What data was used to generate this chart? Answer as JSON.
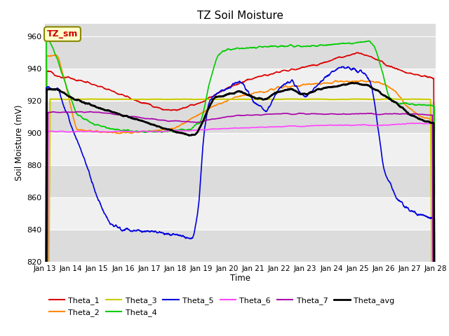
{
  "title": "TZ Soil Moisture",
  "ylabel": "Soil Moisture (mV)",
  "xlabel": "Time",
  "ylim": [
    820,
    968
  ],
  "yticks": [
    820,
    840,
    860,
    880,
    900,
    920,
    940,
    960
  ],
  "xtick_labels": [
    "Jan 13",
    "Jan 14",
    "Jan 15",
    "Jan 16",
    "Jan 17",
    "Jan 18",
    "Jan 19",
    "Jan 20",
    "Jan 21",
    "Jan 22",
    "Jan 23",
    "Jan 24",
    "Jan 25",
    "Jan 26",
    "Jan 27",
    "Jan 28"
  ],
  "bg_light": "#f0f0f0",
  "bg_dark": "#dcdcdc",
  "series": {
    "Theta_1": {
      "color": "#dd0000",
      "lw": 1.2
    },
    "Theta_2": {
      "color": "#ff8800",
      "lw": 1.2
    },
    "Theta_3": {
      "color": "#cccc00",
      "lw": 1.5
    },
    "Theta_4": {
      "color": "#00cc00",
      "lw": 1.2
    },
    "Theta_5": {
      "color": "#0000dd",
      "lw": 1.2
    },
    "Theta_6": {
      "color": "#ff44ff",
      "lw": 1.2
    },
    "Theta_7": {
      "color": "#aa00aa",
      "lw": 1.2
    },
    "Theta_avg": {
      "color": "#000000",
      "lw": 2.0
    }
  },
  "annotation_box": {
    "text": "TZ_sm",
    "fontsize": 9,
    "color": "#cc0000",
    "bg": "#ffffcc",
    "border": "#888800"
  }
}
